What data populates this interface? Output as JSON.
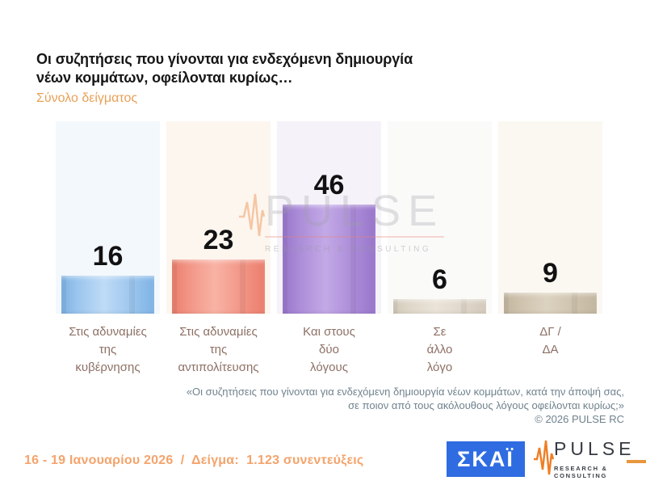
{
  "header": {
    "title_line1": "Οι συζητήσεις που γίνονται για ενδεχόμενη δημιουργία",
    "title_line2": "νέων κομμάτων, οφείλονται κυρίως…",
    "subtitle": "Σύνολο δείγματος"
  },
  "chart_data": {
    "type": "bar",
    "title": "Οι συζητήσεις που γίνονται για ενδεχόμενη δημιουργία νέων κομμάτων, οφείλονται κυρίως…",
    "subtitle": "Σύνολο δείγματος",
    "unit": "percent",
    "ylim": [
      0,
      100
    ],
    "data_labels": true,
    "categories": [
      "Στις αδυναμίες\nτης\nκυβέρνησης",
      "Στις αδυναμίες\nτης\nαντιπολίτευσης",
      "Και στους\nδύο\nλόγους",
      "Σε\nάλλο\nλόγο",
      "ΔΓ /\nΔΑ"
    ],
    "values": [
      16,
      23,
      46,
      6,
      9
    ],
    "bar_colors": [
      {
        "dark": "#7eb2e4",
        "mid": "#9cc6ee",
        "light": "#bfdbf6"
      },
      {
        "dark": "#eb7e6d",
        "mid": "#f29586",
        "light": "#f8b3a4"
      },
      {
        "dark": "#9876cb",
        "mid": "#ab8cd8",
        "light": "#c3a9e6"
      },
      {
        "dark": "#d3cabb",
        "mid": "#dfd7c9",
        "light": "#eae3d8"
      },
      {
        "dark": "#c3b6a0",
        "mid": "#cfc3ae",
        "light": "#dcd2c0"
      }
    ],
    "column_bg_colors": [
      "#f3f8fc",
      "#fdf6ef",
      "#f6f2f9",
      "#fafaf9",
      "#fbf8f2"
    ]
  },
  "watermark": {
    "text": "PULSE",
    "subtext": "RESEARCH & CONSULTING"
  },
  "footnote": {
    "line1": "«Οι συζητήσεις που γίνονται για ενδεχόμενη δημιουργία νέων κομμάτων, κατά την άποψή σας,",
    "line2": "σε ποιον από τους ακόλουθους λόγους οφείλονται κυρίως;»",
    "copyright": "© 2026 PULSE RC"
  },
  "footer": {
    "survey_info": "16 - 19 Ιανουαρίου 2026  /  Δείγμα:  1.123 συνεντεύξεις"
  },
  "logos": {
    "skai_text": "ΣΚΑΪ",
    "pulse_text": "PULSE",
    "pulse_subtext": "RESEARCH & CONSULTING"
  }
}
